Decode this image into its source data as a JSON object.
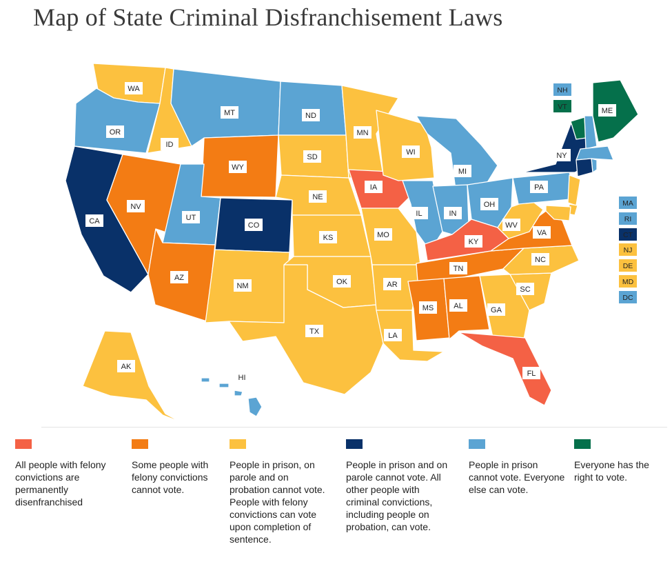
{
  "title": "Map of State Criminal Disfranchisement Laws",
  "colors": {
    "permanent": "#f46145",
    "some": "#f37c14",
    "prison_parole_probation": "#fcc13f",
    "prison_parole": "#093169",
    "prison_only": "#5ba4d3",
    "everyone": "#05704b"
  },
  "legend": [
    {
      "category": "permanent",
      "text": "All people with felony convictions are permanently disenfranchised"
    },
    {
      "category": "some",
      "text": "Some people with felony convictions cannot vote."
    },
    {
      "category": "prison_parole_probation",
      "text": "People in prison, on parole and on probation cannot vote. People with felony convictions can vote upon completion of sentence."
    },
    {
      "category": "prison_parole",
      "text": "People in prison and on parole cannot vote. All other people with criminal convictions, including people on probation, can vote."
    },
    {
      "category": "prison_only",
      "text": "People in prison cannot vote. Everyone else can vote."
    },
    {
      "category": "everyone",
      "text": "Everyone has the right to vote."
    }
  ],
  "states": [
    {
      "abbr": "WA",
      "category": "prison_parole_probation"
    },
    {
      "abbr": "OR",
      "category": "prison_only"
    },
    {
      "abbr": "CA",
      "category": "prison_parole"
    },
    {
      "abbr": "ID",
      "category": "prison_parole_probation"
    },
    {
      "abbr": "NV",
      "category": "some"
    },
    {
      "abbr": "MT",
      "category": "prison_only"
    },
    {
      "abbr": "WY",
      "category": "some"
    },
    {
      "abbr": "UT",
      "category": "prison_only"
    },
    {
      "abbr": "CO",
      "category": "prison_parole"
    },
    {
      "abbr": "AZ",
      "category": "some"
    },
    {
      "abbr": "NM",
      "category": "prison_parole_probation"
    },
    {
      "abbr": "ND",
      "category": "prison_only"
    },
    {
      "abbr": "SD",
      "category": "prison_parole_probation"
    },
    {
      "abbr": "NE",
      "category": "prison_parole_probation"
    },
    {
      "abbr": "KS",
      "category": "prison_parole_probation"
    },
    {
      "abbr": "OK",
      "category": "prison_parole_probation"
    },
    {
      "abbr": "TX",
      "category": "prison_parole_probation"
    },
    {
      "abbr": "MN",
      "category": "prison_parole_probation"
    },
    {
      "abbr": "IA",
      "category": "permanent"
    },
    {
      "abbr": "MO",
      "category": "prison_parole_probation"
    },
    {
      "abbr": "AR",
      "category": "prison_parole_probation"
    },
    {
      "abbr": "LA",
      "category": "prison_parole_probation"
    },
    {
      "abbr": "WI",
      "category": "prison_parole_probation"
    },
    {
      "abbr": "IL",
      "category": "prison_only"
    },
    {
      "abbr": "MI",
      "category": "prison_only"
    },
    {
      "abbr": "IN",
      "category": "prison_only"
    },
    {
      "abbr": "OH",
      "category": "prison_only"
    },
    {
      "abbr": "KY",
      "category": "permanent"
    },
    {
      "abbr": "TN",
      "category": "some"
    },
    {
      "abbr": "MS",
      "category": "some"
    },
    {
      "abbr": "AL",
      "category": "some"
    },
    {
      "abbr": "GA",
      "category": "prison_parole_probation"
    },
    {
      "abbr": "FL",
      "category": "permanent"
    },
    {
      "abbr": "SC",
      "category": "prison_parole_probation"
    },
    {
      "abbr": "NC",
      "category": "prison_parole_probation"
    },
    {
      "abbr": "VA",
      "category": "some"
    },
    {
      "abbr": "WV",
      "category": "prison_parole_probation"
    },
    {
      "abbr": "PA",
      "category": "prison_only"
    },
    {
      "abbr": "NY",
      "category": "prison_parole"
    },
    {
      "abbr": "VT",
      "category": "everyone"
    },
    {
      "abbr": "NH",
      "category": "prison_only"
    },
    {
      "abbr": "ME",
      "category": "everyone"
    },
    {
      "abbr": "MA",
      "category": "prison_only"
    },
    {
      "abbr": "RI",
      "category": "prison_only"
    },
    {
      "abbr": "CT",
      "category": "prison_parole"
    },
    {
      "abbr": "NJ",
      "category": "prison_parole_probation"
    },
    {
      "abbr": "DE",
      "category": "prison_parole_probation"
    },
    {
      "abbr": "MD",
      "category": "prison_parole_probation"
    },
    {
      "abbr": "DC",
      "category": "prison_only"
    },
    {
      "abbr": "AK",
      "category": "prison_parole_probation"
    },
    {
      "abbr": "HI",
      "category": "prison_only"
    }
  ]
}
